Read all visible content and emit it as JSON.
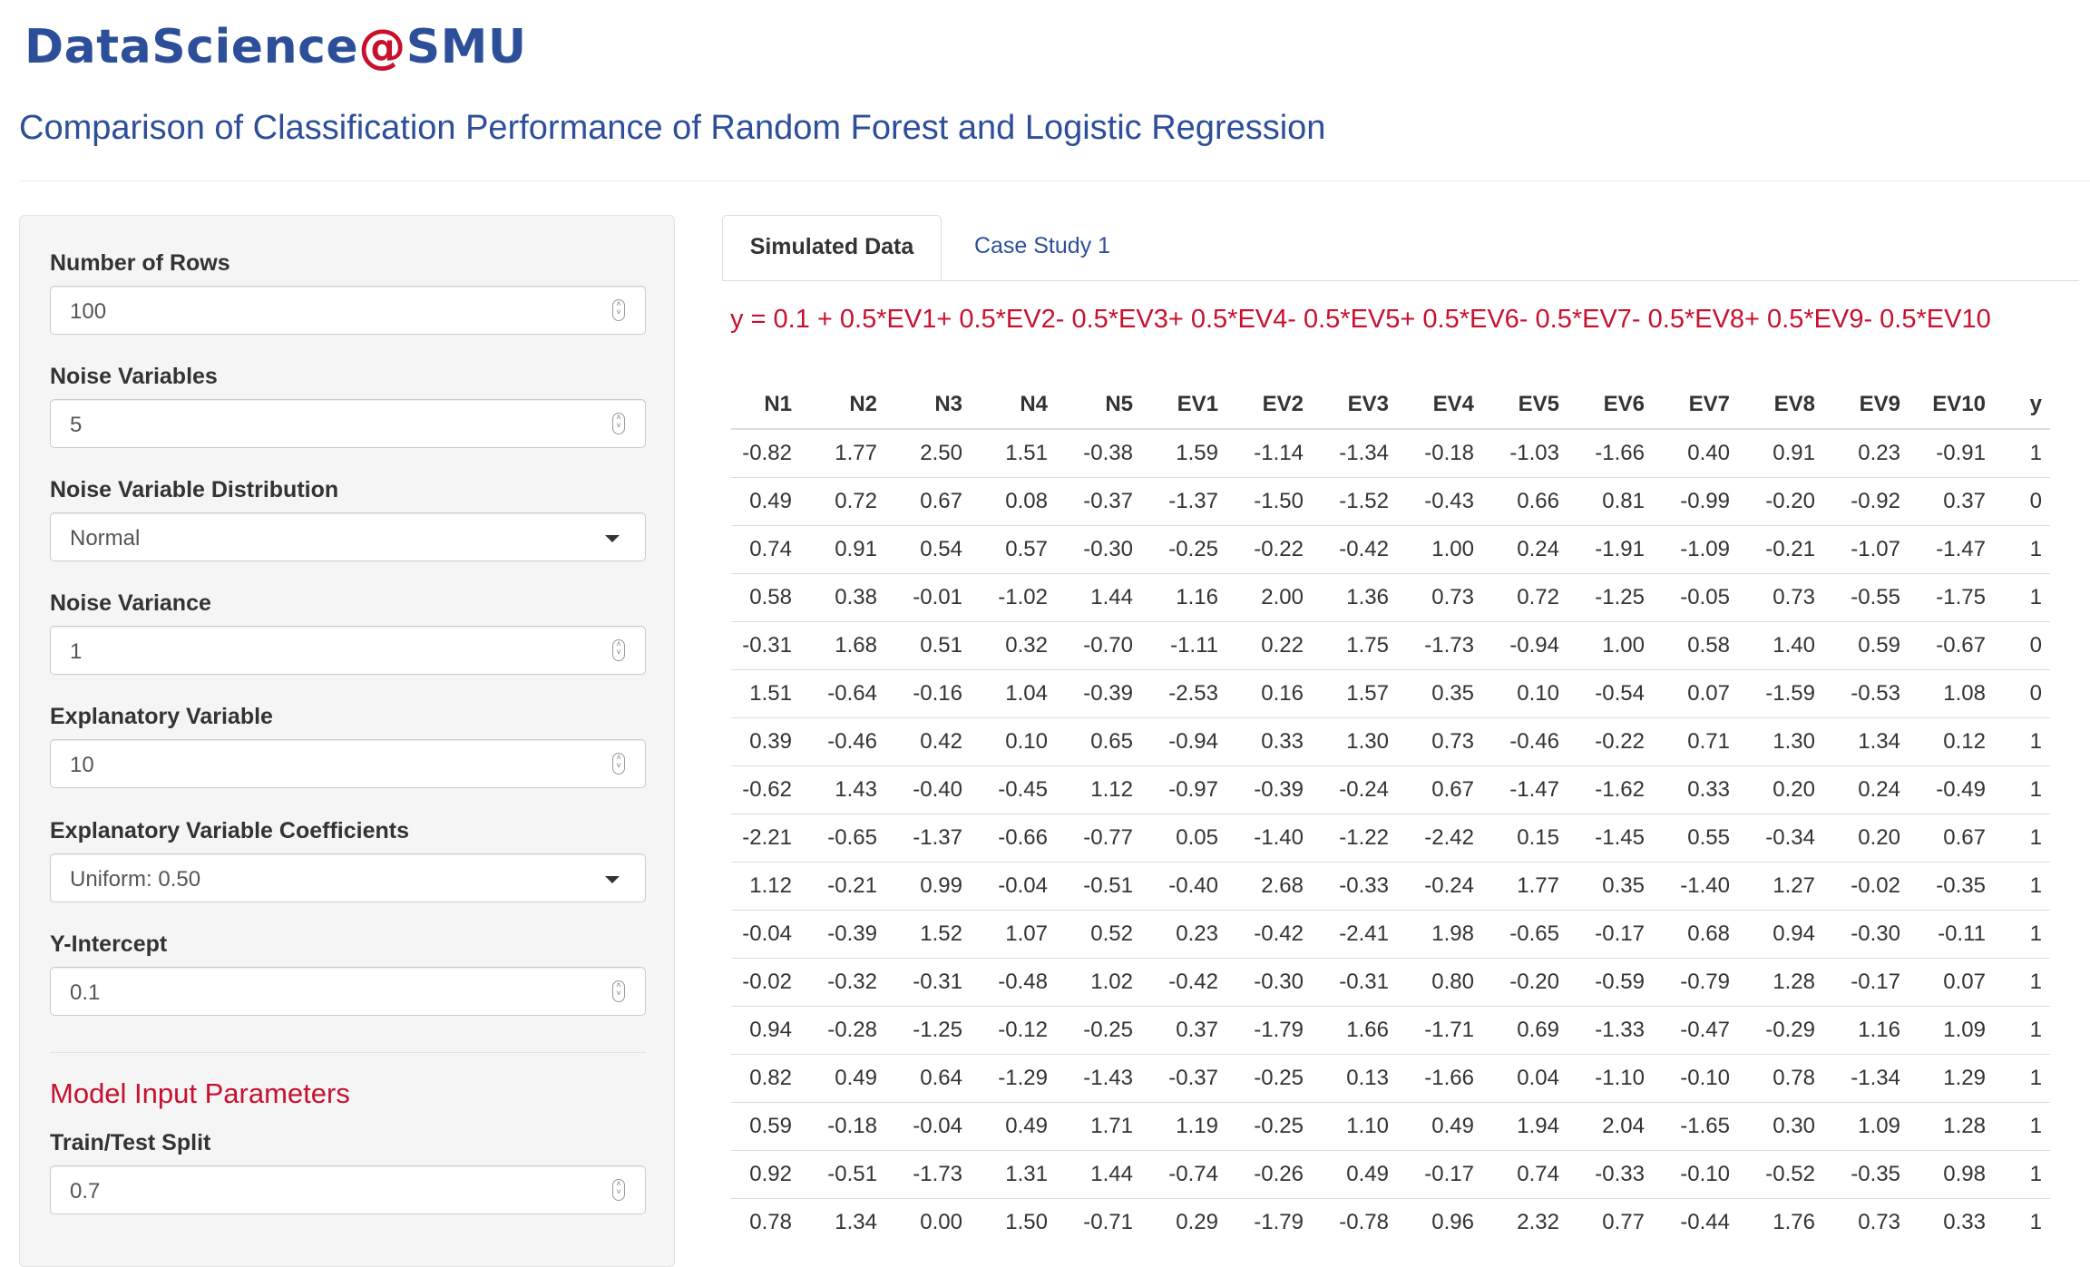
{
  "brand": {
    "name_part1": "DataScience",
    "name_at": "@",
    "name_part2": "SMU"
  },
  "page_title": "Comparison of Classification Performance of Random Forest and Logistic Regression",
  "sidebar": {
    "fields": [
      {
        "label": "Number of Rows",
        "value": "100",
        "control": "number"
      },
      {
        "label": "Noise Variables",
        "value": "5",
        "control": "number"
      },
      {
        "label": "Noise Variable Distribution",
        "value": "Normal",
        "control": "select"
      },
      {
        "label": "Noise Variance",
        "value": "1",
        "control": "number"
      },
      {
        "label": "Explanatory Variable",
        "value": "10",
        "control": "number"
      },
      {
        "label": "Explanatory Variable Coefficients",
        "value": "Uniform: 0.50",
        "control": "select"
      },
      {
        "label": "Y-Intercept",
        "value": "0.1",
        "control": "number"
      }
    ],
    "model_section": {
      "heading": "Model Input Parameters",
      "fields": [
        {
          "label": "Train/Test Split",
          "value": "0.7",
          "control": "number"
        }
      ]
    }
  },
  "tabs": [
    {
      "label": "Simulated Data",
      "active": true
    },
    {
      "label": "Case Study 1",
      "active": false
    }
  ],
  "formula": "y = 0.1 + 0.5*EV1+ 0.5*EV2- 0.5*EV3+ 0.5*EV4- 0.5*EV5+ 0.5*EV6- 0.5*EV7- 0.5*EV8+ 0.5*EV9- 0.5*EV10",
  "table": {
    "columns": [
      "N1",
      "N2",
      "N3",
      "N4",
      "N5",
      "EV1",
      "EV2",
      "EV3",
      "EV4",
      "EV5",
      "EV6",
      "EV7",
      "EV8",
      "EV9",
      "EV10",
      "y"
    ],
    "rows": [
      [
        "-0.82",
        "1.77",
        "2.50",
        "1.51",
        "-0.38",
        "1.59",
        "-1.14",
        "-1.34",
        "-0.18",
        "-1.03",
        "-1.66",
        "0.40",
        "0.91",
        "0.23",
        "-0.91",
        "1"
      ],
      [
        "0.49",
        "0.72",
        "0.67",
        "0.08",
        "-0.37",
        "-1.37",
        "-1.50",
        "-1.52",
        "-0.43",
        "0.66",
        "0.81",
        "-0.99",
        "-0.20",
        "-0.92",
        "0.37",
        "0"
      ],
      [
        "0.74",
        "0.91",
        "0.54",
        "0.57",
        "-0.30",
        "-0.25",
        "-0.22",
        "-0.42",
        "1.00",
        "0.24",
        "-1.91",
        "-1.09",
        "-0.21",
        "-1.07",
        "-1.47",
        "1"
      ],
      [
        "0.58",
        "0.38",
        "-0.01",
        "-1.02",
        "1.44",
        "1.16",
        "2.00",
        "1.36",
        "0.73",
        "0.72",
        "-1.25",
        "-0.05",
        "0.73",
        "-0.55",
        "-1.75",
        "1"
      ],
      [
        "-0.31",
        "1.68",
        "0.51",
        "0.32",
        "-0.70",
        "-1.11",
        "0.22",
        "1.75",
        "-1.73",
        "-0.94",
        "1.00",
        "0.58",
        "1.40",
        "0.59",
        "-0.67",
        "0"
      ],
      [
        "1.51",
        "-0.64",
        "-0.16",
        "1.04",
        "-0.39",
        "-2.53",
        "0.16",
        "1.57",
        "0.35",
        "0.10",
        "-0.54",
        "0.07",
        "-1.59",
        "-0.53",
        "1.08",
        "0"
      ],
      [
        "0.39",
        "-0.46",
        "0.42",
        "0.10",
        "0.65",
        "-0.94",
        "0.33",
        "1.30",
        "0.73",
        "-0.46",
        "-0.22",
        "0.71",
        "1.30",
        "1.34",
        "0.12",
        "1"
      ],
      [
        "-0.62",
        "1.43",
        "-0.40",
        "-0.45",
        "1.12",
        "-0.97",
        "-0.39",
        "-0.24",
        "0.67",
        "-1.47",
        "-1.62",
        "0.33",
        "0.20",
        "0.24",
        "-0.49",
        "1"
      ],
      [
        "-2.21",
        "-0.65",
        "-1.37",
        "-0.66",
        "-0.77",
        "0.05",
        "-1.40",
        "-1.22",
        "-2.42",
        "0.15",
        "-1.45",
        "0.55",
        "-0.34",
        "0.20",
        "0.67",
        "1"
      ],
      [
        "1.12",
        "-0.21",
        "0.99",
        "-0.04",
        "-0.51",
        "-0.40",
        "2.68",
        "-0.33",
        "-0.24",
        "1.77",
        "0.35",
        "-1.40",
        "1.27",
        "-0.02",
        "-0.35",
        "1"
      ],
      [
        "-0.04",
        "-0.39",
        "1.52",
        "1.07",
        "0.52",
        "0.23",
        "-0.42",
        "-2.41",
        "1.98",
        "-0.65",
        "-0.17",
        "0.68",
        "0.94",
        "-0.30",
        "-0.11",
        "1"
      ],
      [
        "-0.02",
        "-0.32",
        "-0.31",
        "-0.48",
        "1.02",
        "-0.42",
        "-0.30",
        "-0.31",
        "0.80",
        "-0.20",
        "-0.59",
        "-0.79",
        "1.28",
        "-0.17",
        "0.07",
        "1"
      ],
      [
        "0.94",
        "-0.28",
        "-1.25",
        "-0.12",
        "-0.25",
        "0.37",
        "-1.79",
        "1.66",
        "-1.71",
        "0.69",
        "-1.33",
        "-0.47",
        "-0.29",
        "1.16",
        "1.09",
        "1"
      ],
      [
        "0.82",
        "0.49",
        "0.64",
        "-1.29",
        "-1.43",
        "-0.37",
        "-0.25",
        "0.13",
        "-1.66",
        "0.04",
        "-1.10",
        "-0.10",
        "0.78",
        "-1.34",
        "1.29",
        "1"
      ],
      [
        "0.59",
        "-0.18",
        "-0.04",
        "0.49",
        "1.71",
        "1.19",
        "-0.25",
        "1.10",
        "0.49",
        "1.94",
        "2.04",
        "-1.65",
        "0.30",
        "1.09",
        "1.28",
        "1"
      ],
      [
        "0.92",
        "-0.51",
        "-1.73",
        "1.31",
        "1.44",
        "-0.74",
        "-0.26",
        "0.49",
        "-0.17",
        "0.74",
        "-0.33",
        "-0.10",
        "-0.52",
        "-0.35",
        "0.98",
        "1"
      ],
      [
        "0.78",
        "1.34",
        "0.00",
        "1.50",
        "-0.71",
        "0.29",
        "-1.79",
        "-0.78",
        "0.96",
        "2.32",
        "0.77",
        "-0.44",
        "1.76",
        "0.73",
        "0.33",
        "1"
      ]
    ]
  },
  "colors": {
    "brand_blue": "#2d4f9a",
    "accent_red": "#c8102e",
    "panel_bg": "#f5f5f5"
  }
}
